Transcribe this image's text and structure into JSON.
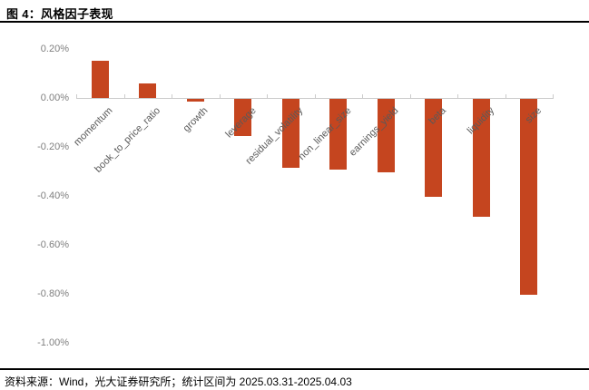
{
  "header": {
    "title": "图 4：风格因子表现"
  },
  "footer": {
    "source_line": "资料来源：Wind，光大证券研究所；统计区间为 2025.03.31-2025.04.03"
  },
  "colors": {
    "bar": "#C5451F",
    "axis_line": "#CBCBCB",
    "y_label": "#7F7F7F",
    "x_label": "#595959",
    "rule": "#000000"
  },
  "chart_data": {
    "type": "bar",
    "title": "风格因子表现",
    "unit": "%",
    "xlabel": "",
    "ylabel": "",
    "categories": [
      "momentum",
      "book_to_price_ratio",
      "growth",
      "leverage",
      "residual_volatility",
      "non_linear_size",
      "earnings_yield",
      "beta",
      "liquidity",
      "size"
    ],
    "values": [
      0.15,
      0.06,
      -0.01,
      -0.15,
      -0.28,
      -0.29,
      -0.3,
      -0.4,
      -0.48,
      -0.8
    ],
    "y_ticks": [
      {
        "value": 0.2,
        "label": "0.20%"
      },
      {
        "value": 0.0,
        "label": "0.00%"
      },
      {
        "value": -0.2,
        "label": "-0.20%"
      },
      {
        "value": -0.4,
        "label": "-0.40%"
      },
      {
        "value": -0.6,
        "label": "-0.60%"
      },
      {
        "value": -0.8,
        "label": "-0.80%"
      },
      {
        "value": -1.0,
        "label": "-1.00%"
      }
    ],
    "ylim": [
      -1.0,
      0.2
    ],
    "grid": false,
    "legend_position": "none",
    "x_label_rotation_deg": 45
  }
}
